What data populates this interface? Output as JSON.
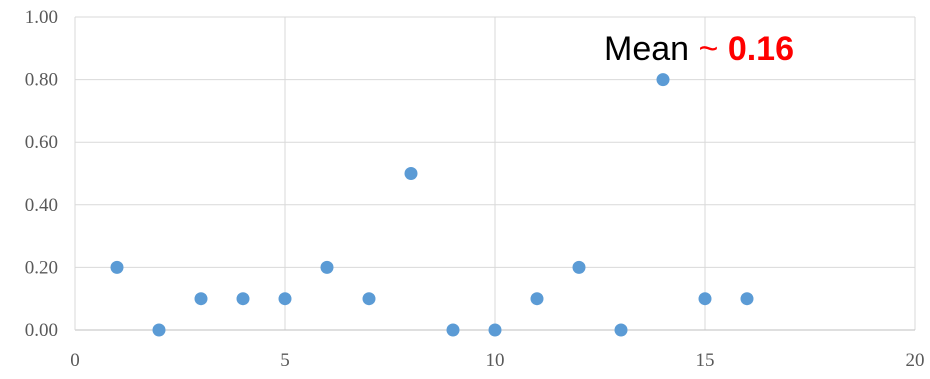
{
  "chart_data": {
    "type": "scatter",
    "title": "",
    "xlabel": "",
    "ylabel": "",
    "xlim": [
      0,
      20
    ],
    "ylim": [
      0,
      1
    ],
    "x_ticks": [
      "0",
      "5",
      "10",
      "15",
      "20"
    ],
    "y_ticks": [
      "0.00",
      "0.20",
      "0.40",
      "0.60",
      "0.80",
      "1.00"
    ],
    "grid": true,
    "legend": "none",
    "series": [
      {
        "color": "#5b9bd5",
        "points": [
          {
            "x": 1,
            "y": 0.2
          },
          {
            "x": 2,
            "y": 0.0
          },
          {
            "x": 3,
            "y": 0.1
          },
          {
            "x": 4,
            "y": 0.1
          },
          {
            "x": 5,
            "y": 0.1
          },
          {
            "x": 6,
            "y": 0.2
          },
          {
            "x": 7,
            "y": 0.1
          },
          {
            "x": 8,
            "y": 0.5
          },
          {
            "x": 9,
            "y": 0.0
          },
          {
            "x": 10,
            "y": 0.0
          },
          {
            "x": 11,
            "y": 0.1
          },
          {
            "x": 12,
            "y": 0.2
          },
          {
            "x": 13,
            "y": 0.0
          },
          {
            "x": 14,
            "y": 0.8
          },
          {
            "x": 15,
            "y": 0.1
          },
          {
            "x": 16,
            "y": 0.1
          }
        ]
      }
    ],
    "annotation": {
      "prefix": "Mean",
      "tilde": "~",
      "value": "0.16"
    }
  }
}
